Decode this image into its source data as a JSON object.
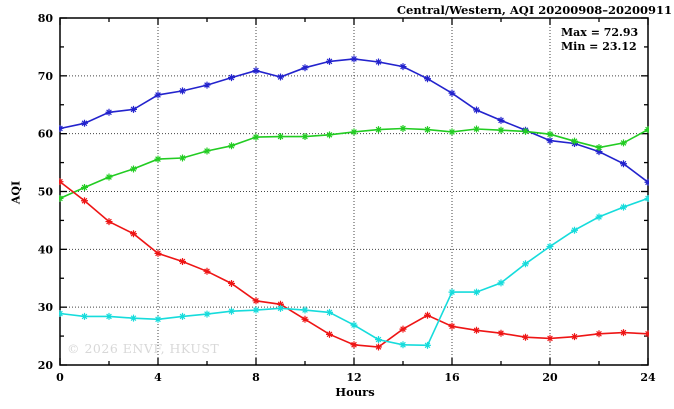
{
  "title": "Central/Western, AQI 20200908–20200911",
  "annotations": {
    "max_label": "Max = 72.93",
    "min_label": "Min = 23.12"
  },
  "watermark": "© 2026 ENVF, HKUST",
  "colors": {
    "blue": "#2323cd",
    "green": "#22cc22",
    "red": "#ee1515",
    "cyan": "#16dcdc",
    "grid": "#444444",
    "frame": "#000000",
    "watermark": "#d8d8d8"
  },
  "chart_data": {
    "type": "line",
    "title": "Central/Western, AQI 20200908–20200911",
    "xlabel": "Hours",
    "ylabel": "AQI",
    "xlim": [
      0,
      24
    ],
    "ylim": [
      20,
      80
    ],
    "x_major_ticks": [
      0,
      4,
      8,
      12,
      16,
      20,
      24
    ],
    "x_minor_step": 2,
    "y_major_ticks": [
      20,
      30,
      40,
      50,
      60,
      70,
      80
    ],
    "y_minor_step": 5,
    "grid": true,
    "legend_position": "none",
    "marker": "asterisk",
    "max": 72.93,
    "min": 23.12,
    "x": [
      0,
      1,
      2,
      3,
      4,
      5,
      6,
      7,
      8,
      9,
      10,
      11,
      12,
      13,
      14,
      15,
      16,
      17,
      18,
      19,
      20,
      21,
      22,
      23,
      24
    ],
    "series": [
      {
        "name": "blue",
        "color": "#2323cd",
        "values": [
          60.9,
          61.8,
          63.7,
          64.2,
          66.7,
          67.4,
          68.4,
          69.7,
          70.9,
          69.8,
          71.4,
          72.5,
          72.93,
          72.4,
          71.6,
          69.5,
          67.0,
          64.1,
          62.3,
          60.6,
          58.8,
          58.3,
          56.9,
          54.8,
          51.6
        ]
      },
      {
        "name": "green",
        "color": "#22cc22",
        "values": [
          48.8,
          50.7,
          52.5,
          53.9,
          55.6,
          55.8,
          57.0,
          57.9,
          59.4,
          59.5,
          59.5,
          59.8,
          60.3,
          60.7,
          60.9,
          60.7,
          60.3,
          60.8,
          60.6,
          60.4,
          59.9,
          58.7,
          57.6,
          58.4,
          60.7
        ]
      },
      {
        "name": "red",
        "color": "#ee1515",
        "values": [
          51.7,
          48.4,
          44.8,
          42.7,
          39.3,
          37.9,
          36.2,
          34.1,
          31.1,
          30.5,
          27.9,
          25.3,
          23.5,
          23.12,
          26.2,
          28.6,
          26.7,
          26.0,
          25.5,
          24.8,
          24.6,
          24.9,
          25.4,
          25.6,
          25.4
        ]
      },
      {
        "name": "cyan",
        "color": "#16dcdc",
        "values": [
          28.9,
          28.4,
          28.4,
          28.1,
          27.9,
          28.4,
          28.8,
          29.3,
          29.5,
          29.8,
          29.5,
          29.1,
          26.9,
          24.4,
          23.5,
          23.4,
          32.6,
          32.6,
          34.2,
          37.5,
          40.5,
          43.3,
          45.6,
          47.3,
          48.8
        ]
      }
    ]
  }
}
